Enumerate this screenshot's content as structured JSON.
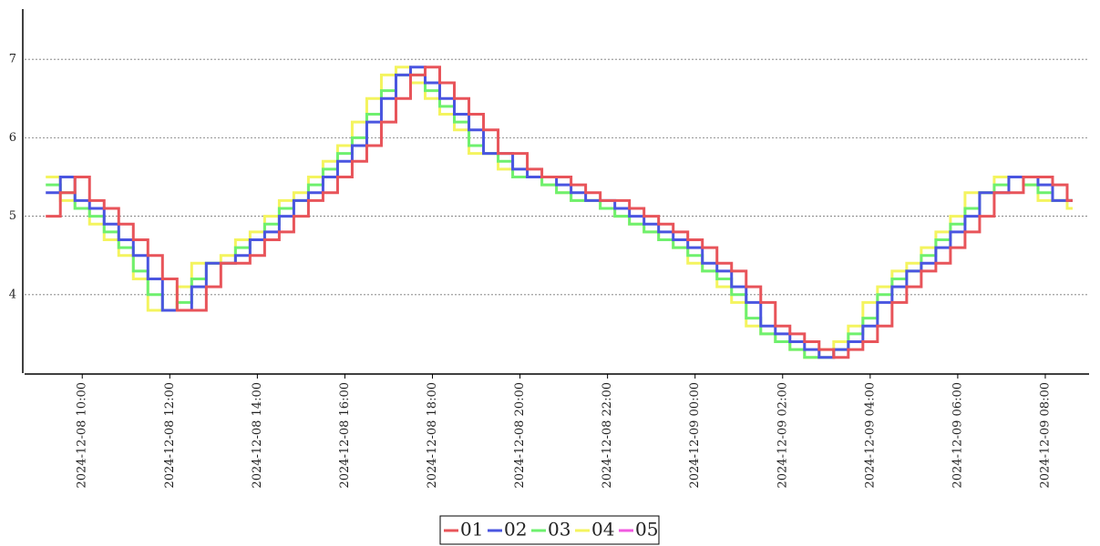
{
  "chart_data": {
    "type": "step",
    "x": [
      "2024-12-08 09:10",
      "2024-12-08 09:30",
      "2024-12-08 09:50",
      "2024-12-08 10:10",
      "2024-12-08 10:30",
      "2024-12-08 10:50",
      "2024-12-08 11:10",
      "2024-12-08 11:30",
      "2024-12-08 11:50",
      "2024-12-08 12:10",
      "2024-12-08 12:30",
      "2024-12-08 12:50",
      "2024-12-08 13:10",
      "2024-12-08 13:30",
      "2024-12-08 13:50",
      "2024-12-08 14:10",
      "2024-12-08 14:30",
      "2024-12-08 14:50",
      "2024-12-08 15:10",
      "2024-12-08 15:30",
      "2024-12-08 15:50",
      "2024-12-08 16:10",
      "2024-12-08 16:30",
      "2024-12-08 16:50",
      "2024-12-08 17:10",
      "2024-12-08 17:30",
      "2024-12-08 17:50",
      "2024-12-08 18:10",
      "2024-12-08 18:30",
      "2024-12-08 18:50",
      "2024-12-08 19:10",
      "2024-12-08 19:30",
      "2024-12-08 19:50",
      "2024-12-08 20:10",
      "2024-12-08 20:30",
      "2024-12-08 20:50",
      "2024-12-08 21:10",
      "2024-12-08 21:30",
      "2024-12-08 21:50",
      "2024-12-08 22:10",
      "2024-12-08 22:30",
      "2024-12-08 22:50",
      "2024-12-08 23:10",
      "2024-12-08 23:30",
      "2024-12-08 23:50",
      "2024-12-09 00:10",
      "2024-12-09 00:30",
      "2024-12-09 00:50",
      "2024-12-09 01:10",
      "2024-12-09 01:30",
      "2024-12-09 01:50",
      "2024-12-09 02:10",
      "2024-12-09 02:30",
      "2024-12-09 02:50",
      "2024-12-09 03:10",
      "2024-12-09 03:30",
      "2024-12-09 03:50",
      "2024-12-09 04:10",
      "2024-12-09 04:30",
      "2024-12-09 04:50",
      "2024-12-09 05:10",
      "2024-12-09 05:30",
      "2024-12-09 05:50",
      "2024-12-09 06:10",
      "2024-12-09 06:30",
      "2024-12-09 06:50",
      "2024-12-09 07:10",
      "2024-12-09 07:30",
      "2024-12-09 07:50",
      "2024-12-09 08:10",
      "2024-12-09 08:30"
    ],
    "series": [
      {
        "name": "01",
        "color": "#e8545a",
        "values": [
          5.0,
          5.3,
          5.5,
          5.2,
          5.1,
          4.9,
          4.7,
          4.5,
          4.2,
          3.8,
          3.8,
          4.1,
          4.4,
          4.4,
          4.5,
          4.7,
          4.8,
          5.0,
          5.2,
          5.3,
          5.5,
          5.7,
          5.9,
          6.2,
          6.5,
          6.8,
          6.9,
          6.7,
          6.5,
          6.3,
          6.1,
          5.8,
          5.8,
          5.6,
          5.5,
          5.5,
          5.4,
          5.3,
          5.2,
          5.2,
          5.1,
          5.0,
          4.9,
          4.8,
          4.7,
          4.6,
          4.4,
          4.3,
          4.1,
          3.9,
          3.6,
          3.5,
          3.4,
          3.3,
          3.2,
          3.3,
          3.4,
          3.6,
          3.9,
          4.1,
          4.3,
          4.4,
          4.6,
          4.8,
          5.0,
          5.3,
          5.3,
          5.5,
          5.5,
          5.4,
          5.2
        ]
      },
      {
        "name": "02",
        "color": "#4a55e0",
        "values": [
          5.3,
          5.5,
          5.2,
          5.1,
          4.9,
          4.7,
          4.5,
          4.2,
          3.8,
          3.8,
          4.1,
          4.4,
          4.4,
          4.5,
          4.7,
          4.8,
          5.0,
          5.2,
          5.3,
          5.5,
          5.7,
          5.9,
          6.2,
          6.5,
          6.8,
          6.9,
          6.7,
          6.5,
          6.3,
          6.1,
          5.8,
          5.8,
          5.6,
          5.5,
          5.5,
          5.4,
          5.3,
          5.2,
          5.2,
          5.1,
          5.0,
          4.9,
          4.8,
          4.7,
          4.6,
          4.4,
          4.3,
          4.1,
          3.9,
          3.6,
          3.5,
          3.4,
          3.3,
          3.2,
          3.3,
          3.4,
          3.6,
          3.9,
          4.1,
          4.3,
          4.4,
          4.6,
          4.8,
          5.0,
          5.3,
          5.3,
          5.5,
          5.5,
          5.4,
          5.2,
          5.2
        ]
      },
      {
        "name": "03",
        "color": "#6ef06e",
        "values": [
          5.4,
          5.3,
          5.1,
          5.0,
          4.8,
          4.6,
          4.3,
          4.0,
          3.8,
          3.9,
          4.2,
          4.4,
          4.4,
          4.6,
          4.7,
          4.9,
          5.1,
          5.2,
          5.4,
          5.6,
          5.8,
          6.0,
          6.3,
          6.6,
          6.8,
          6.8,
          6.6,
          6.4,
          6.2,
          5.9,
          5.8,
          5.7,
          5.5,
          5.5,
          5.4,
          5.3,
          5.2,
          5.2,
          5.1,
          5.0,
          4.9,
          4.8,
          4.7,
          4.6,
          4.5,
          4.3,
          4.2,
          4.0,
          3.7,
          3.5,
          3.4,
          3.3,
          3.2,
          3.2,
          3.3,
          3.5,
          3.7,
          4.0,
          4.2,
          4.3,
          4.5,
          4.7,
          4.9,
          5.1,
          5.3,
          5.4,
          5.5,
          5.4,
          5.3,
          5.2,
          5.2
        ]
      },
      {
        "name": "04",
        "color": "#f4f45e",
        "values": [
          5.5,
          5.2,
          5.1,
          4.9,
          4.7,
          4.5,
          4.2,
          3.8,
          3.8,
          4.1,
          4.4,
          4.4,
          4.5,
          4.7,
          4.8,
          5.0,
          5.2,
          5.3,
          5.5,
          5.7,
          5.9,
          6.2,
          6.5,
          6.8,
          6.9,
          6.7,
          6.5,
          6.3,
          6.1,
          5.8,
          5.8,
          5.6,
          5.5,
          5.5,
          5.4,
          5.3,
          5.2,
          5.2,
          5.1,
          5.0,
          4.9,
          4.8,
          4.7,
          4.6,
          4.4,
          4.3,
          4.1,
          3.9,
          3.6,
          3.5,
          3.4,
          3.3,
          3.2,
          3.3,
          3.4,
          3.6,
          3.9,
          4.1,
          4.3,
          4.4,
          4.6,
          4.8,
          5.0,
          5.3,
          5.3,
          5.5,
          5.5,
          5.4,
          5.2,
          5.2,
          5.1
        ]
      },
      {
        "name": "05",
        "color": "#f05ae0",
        "values": [
          null,
          null,
          null,
          null,
          null,
          null,
          null,
          null,
          null,
          null,
          null,
          null,
          null,
          null,
          null,
          null,
          null,
          null,
          null,
          null,
          null,
          null,
          null,
          null,
          null,
          null,
          null,
          null,
          null,
          null,
          null,
          null,
          null,
          null,
          null,
          null,
          null,
          null,
          null,
          null,
          null,
          null,
          null,
          null,
          null,
          null,
          null,
          null,
          null,
          null,
          null,
          null,
          null,
          null,
          null,
          null,
          null,
          null,
          null,
          null,
          null,
          null,
          null,
          null,
          null,
          null,
          null,
          null,
          null,
          null,
          null
        ]
      }
    ],
    "xlim": [
      "2024-12-08 08:41",
      "2024-12-09 09:00"
    ],
    "xticks": [
      "2024-12-08 10:00",
      "2024-12-08 12:00",
      "2024-12-08 14:00",
      "2024-12-08 16:00",
      "2024-12-08 18:00",
      "2024-12-08 20:00",
      "2024-12-08 22:00",
      "2024-12-09 00:00",
      "2024-12-09 02:00",
      "2024-12-09 04:00",
      "2024-12-09 06:00",
      "2024-12-09 08:00"
    ],
    "ylim": [
      3.0,
      7.64
    ],
    "yticks": [
      4,
      5,
      6,
      7
    ],
    "grid": true,
    "legend": "bottom"
  }
}
